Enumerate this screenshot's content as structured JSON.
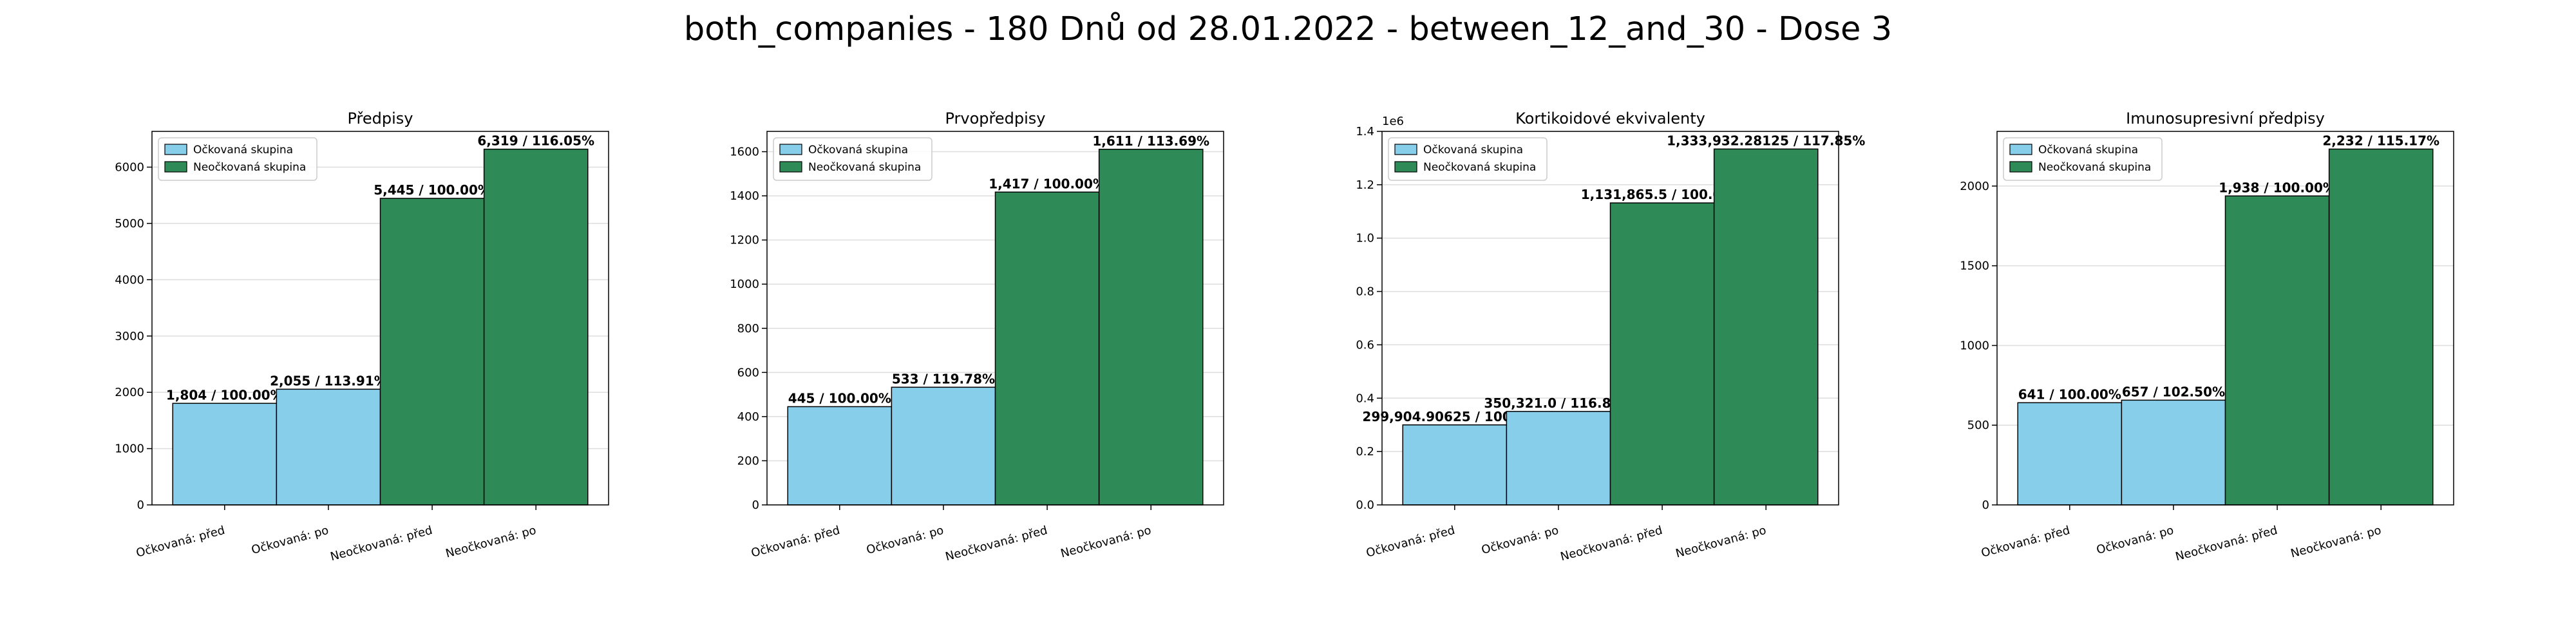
{
  "figure": {
    "title": "both_companies - 180 Dnů od 28.01.2022 - between_12_and_30 - Dose 3"
  },
  "colors": {
    "vaccinated": "#87ceeb",
    "unvaccinated": "#2e8b57",
    "edge": "#000000",
    "grid": "#dddddd"
  },
  "chart_data": [
    {
      "type": "bar",
      "title": "Předpisy",
      "categories": [
        "Očkovaná: před",
        "Očkovaná: po",
        "Neočkovaná: před",
        "Neočkovaná: po"
      ],
      "values": [
        1804,
        2055,
        5445,
        6319
      ],
      "bar_labels": [
        "1,804 / 100.00%",
        "2,055 / 113.91%",
        "5,445 / 100.00%",
        "6,319 / 116.05%"
      ],
      "groups": [
        "vaccinated",
        "vaccinated",
        "unvaccinated",
        "unvaccinated"
      ],
      "ylim": [
        0,
        6635
      ],
      "yticks": [
        0,
        1000,
        2000,
        3000,
        4000,
        5000,
        6000
      ],
      "ytick_labels": [
        "0",
        "1000",
        "2000",
        "3000",
        "4000",
        "5000",
        "6000"
      ],
      "y_offset_text": "",
      "legend": [
        "Očkovaná skupina",
        "Neočkovaná skupina"
      ],
      "legend_position": "top-left",
      "grid": true
    },
    {
      "type": "bar",
      "title": "Prvopředpisy",
      "categories": [
        "Očkovaná: před",
        "Očkovaná: po",
        "Neočkovaná: před",
        "Neočkovaná: po"
      ],
      "values": [
        445,
        533,
        1417,
        1611
      ],
      "bar_labels": [
        "445 / 100.00%",
        "533 / 119.78%",
        "1,417 / 100.00%",
        "1,611 / 113.69%"
      ],
      "groups": [
        "vaccinated",
        "vaccinated",
        "unvaccinated",
        "unvaccinated"
      ],
      "ylim": [
        0,
        1692
      ],
      "yticks": [
        0,
        200,
        400,
        600,
        800,
        1000,
        1200,
        1400,
        1600
      ],
      "ytick_labels": [
        "0",
        "200",
        "400",
        "600",
        "800",
        "1000",
        "1200",
        "1400",
        "1600"
      ],
      "y_offset_text": "",
      "legend": [
        "Očkovaná skupina",
        "Neočkovaná skupina"
      ],
      "legend_position": "top-left",
      "grid": true
    },
    {
      "type": "bar",
      "title": "Kortikoidové ekvivalenty",
      "categories": [
        "Očkovaná: před",
        "Očkovaná: po",
        "Neočkovaná: před",
        "Neočkovaná: po"
      ],
      "values": [
        299904.90625,
        350321.0,
        1131865.5,
        1333932.28125
      ],
      "bar_labels": [
        "299,904.90625 / 100.00%",
        "350,321.0 / 116.81%",
        "1,131,865.5 / 100.00%",
        "1,333,932.28125 / 117.85%"
      ],
      "groups": [
        "vaccinated",
        "vaccinated",
        "unvaccinated",
        "unvaccinated"
      ],
      "ylim": [
        0,
        1400000
      ],
      "yticks": [
        0,
        200000,
        400000,
        600000,
        800000,
        1000000,
        1200000,
        1400000
      ],
      "ytick_labels": [
        "0.0",
        "0.2",
        "0.4",
        "0.6",
        "0.8",
        "1.0",
        "1.2",
        "1.4"
      ],
      "y_offset_text": "1e6",
      "legend": [
        "Očkovaná skupina",
        "Neočkovaná skupina"
      ],
      "legend_position": "top-left",
      "grid": true
    },
    {
      "type": "bar",
      "title": "Imunosupresivní předpisy",
      "categories": [
        "Očkovaná: před",
        "Očkovaná: po",
        "Neočkovaná: před",
        "Neočkovaná: po"
      ],
      "values": [
        641,
        657,
        1938,
        2232
      ],
      "bar_labels": [
        "641 / 100.00%",
        "657 / 102.50%",
        "1,938 / 100.00%",
        "2,232 / 115.17%"
      ],
      "groups": [
        "vaccinated",
        "vaccinated",
        "unvaccinated",
        "unvaccinated"
      ],
      "ylim": [
        0,
        2343
      ],
      "yticks": [
        0,
        500,
        1000,
        1500,
        2000
      ],
      "ytick_labels": [
        "0",
        "500",
        "1000",
        "1500",
        "2000"
      ],
      "y_offset_text": "",
      "legend": [
        "Očkovaná skupina",
        "Neočkovaná skupina"
      ],
      "legend_position": "top-left",
      "grid": true
    }
  ]
}
